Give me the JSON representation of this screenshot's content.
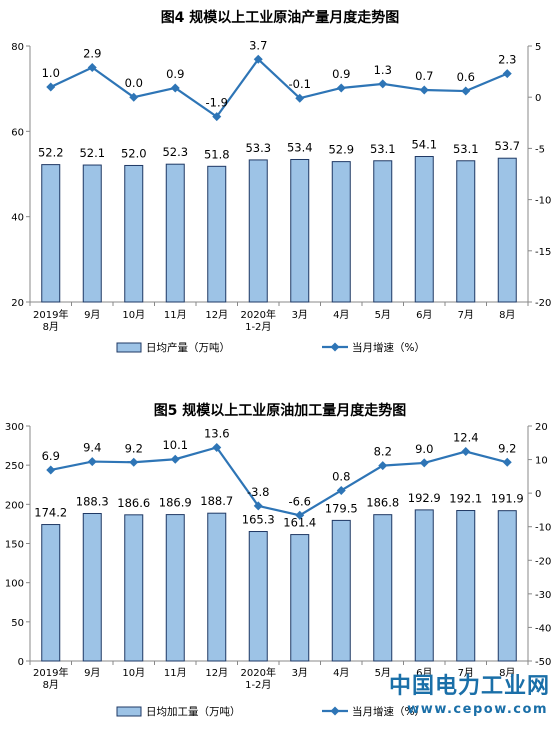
{
  "chart_data": [
    {
      "type": "bar+line",
      "title": "图4  规模以上工业原油产量月度走势图",
      "categories": [
        [
          "2019年",
          "8月"
        ],
        [
          "9月"
        ],
        [
          "10月"
        ],
        [
          "11月"
        ],
        [
          "12月"
        ],
        [
          "2020年",
          "1-2月"
        ],
        [
          "3月"
        ],
        [
          "4月"
        ],
        [
          "5月"
        ],
        [
          "6月"
        ],
        [
          "7月"
        ],
        [
          "8月"
        ]
      ],
      "left_axis": {
        "min": 20,
        "max": 80,
        "ticks": [
          20,
          40,
          60,
          80
        ]
      },
      "right_axis": {
        "min": -20,
        "max": 5,
        "ticks": [
          5,
          0,
          -5,
          -10,
          -15,
          -20
        ]
      },
      "series": [
        {
          "name": "日均产量（万吨）",
          "kind": "bar",
          "axis": "left",
          "values": [
            52.2,
            52.1,
            52.0,
            52.3,
            51.8,
            53.3,
            53.4,
            52.9,
            53.1,
            54.1,
            53.1,
            53.7
          ]
        },
        {
          "name": "当月增速（%）",
          "kind": "line",
          "axis": "right",
          "values": [
            1.0,
            2.9,
            0.0,
            0.9,
            -1.9,
            3.7,
            -0.1,
            0.9,
            1.3,
            0.7,
            0.6,
            2.3
          ]
        }
      ]
    },
    {
      "type": "bar+line",
      "title": "图5  规模以上工业原油加工量月度走势图",
      "categories": [
        [
          "2019年",
          "8月"
        ],
        [
          "9月"
        ],
        [
          "10月"
        ],
        [
          "11月"
        ],
        [
          "12月"
        ],
        [
          "2020年",
          "1-2月"
        ],
        [
          "3月"
        ],
        [
          "4月"
        ],
        [
          "5月"
        ],
        [
          "6月"
        ],
        [
          "7月"
        ],
        [
          "8月"
        ]
      ],
      "left_axis": {
        "min": 0,
        "max": 300,
        "ticks": [
          0,
          50,
          100,
          150,
          200,
          250,
          300
        ]
      },
      "right_axis": {
        "min": -50,
        "max": 20,
        "ticks": [
          20,
          10,
          0,
          -10,
          -20,
          -30,
          -40,
          -50
        ]
      },
      "series": [
        {
          "name": "日均加工量（万吨）",
          "kind": "bar",
          "axis": "left",
          "values": [
            174.2,
            188.3,
            186.6,
            186.9,
            188.7,
            165.3,
            161.4,
            179.5,
            186.8,
            192.9,
            192.1,
            191.9
          ]
        },
        {
          "name": "当月增速（%）",
          "kind": "line",
          "axis": "right",
          "values": [
            6.9,
            9.4,
            9.2,
            10.1,
            13.6,
            -3.8,
            -6.6,
            0.8,
            8.2,
            9.0,
            12.4,
            9.2
          ]
        }
      ]
    }
  ],
  "colors": {
    "bar_fill": "#9DC3E6",
    "bar_stroke": "#1F3864",
    "line": "#2E75B6",
    "axis": "#888888"
  },
  "watermark": {
    "name": "中国电力工业网",
    "url": "www.cepow.com"
  }
}
